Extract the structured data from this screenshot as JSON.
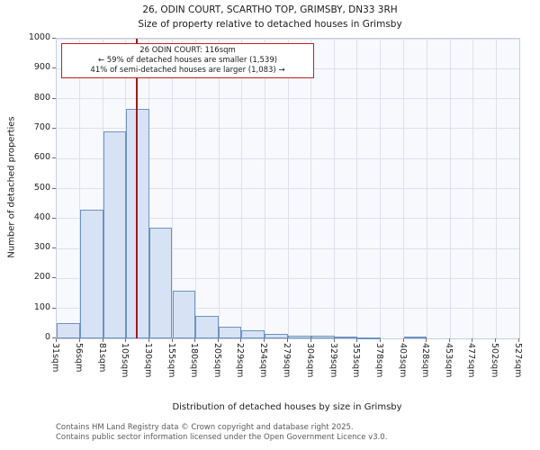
{
  "footer": {
    "line1": "Contains HM Land Registry data © Crown copyright and database right 2025.",
    "line2": "Contains public sector information licensed under the Open Government Licence v3.0."
  },
  "chart_data": {
    "type": "bar",
    "title": "26, ODIN COURT, SCARTHO TOP, GRIMSBY, DN33 3RH",
    "subtitle": "Size of property relative to detached houses in Grimsby",
    "xlabel": "Distribution of detached houses by size in Grimsby",
    "ylabel": "Number of detached properties",
    "x_tick_labels": [
      "31sqm",
      "56sqm",
      "81sqm",
      "105sqm",
      "130sqm",
      "155sqm",
      "180sqm",
      "205sqm",
      "229sqm",
      "254sqm",
      "279sqm",
      "304sqm",
      "329sqm",
      "353sqm",
      "378sqm",
      "403sqm",
      "428sqm",
      "453sqm",
      "477sqm",
      "502sqm",
      "527sqm"
    ],
    "bin_edges_sqm": [
      31,
      56,
      81,
      105,
      130,
      155,
      180,
      205,
      229,
      254,
      279,
      304,
      329,
      353,
      378,
      403,
      428,
      453,
      477,
      502,
      527
    ],
    "values": [
      50,
      430,
      690,
      765,
      370,
      160,
      75,
      40,
      28,
      15,
      10,
      8,
      5,
      3,
      0,
      5,
      0,
      0,
      0,
      0
    ],
    "ylim": [
      0,
      1000
    ],
    "y_ticks": [
      0,
      100,
      200,
      300,
      400,
      500,
      600,
      700,
      800,
      900,
      1000
    ],
    "grid": true,
    "legend": "none",
    "marker_value_sqm": 116,
    "marker_color": "#9b1c1c",
    "bar_fill": "#d7e3f4",
    "bar_border": "#6d92c4",
    "annotation": {
      "line1": "26 ODIN COURT: 116sqm",
      "line2": "← 59% of detached houses are smaller (1,539)",
      "line3": "41% of semi-detached houses are larger (1,083) →"
    }
  }
}
